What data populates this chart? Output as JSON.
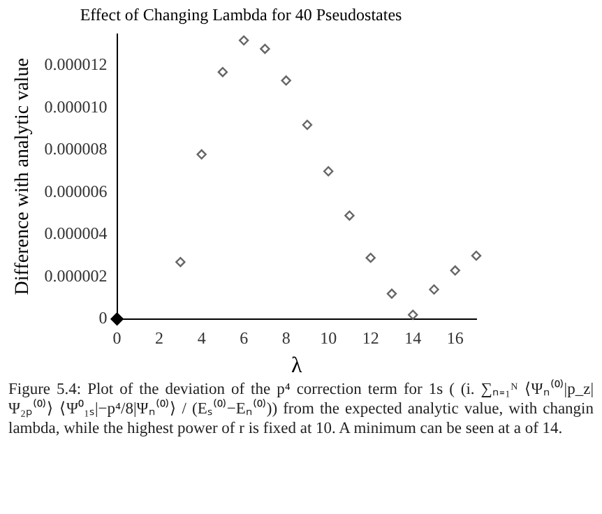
{
  "chart_data": {
    "type": "scatter",
    "title": "Effect of Changing Lambda for 40 Pseudostates",
    "xlabel": "λ",
    "ylabel": "Difference with analytic value",
    "series": [
      {
        "color": "#666666",
        "marker": "diamond",
        "x": [
          3,
          4,
          5,
          6,
          7,
          8,
          9,
          10,
          11,
          12,
          13,
          14,
          15,
          16,
          17
        ],
        "values": [
          2.7e-06,
          7.8e-06,
          1.17e-05,
          1.32e-05,
          1.28e-05,
          1.13e-05,
          9.2e-06,
          7e-06,
          4.9e-06,
          2.9e-06,
          1.2e-06,
          2e-07,
          1.4e-06,
          2.3e-06,
          3e-06
        ]
      },
      {
        "color": "#000000",
        "marker": "diamond",
        "x": [
          0
        ],
        "values": [
          0
        ]
      }
    ],
    "xlim": [
      0,
      17
    ],
    "xticks": [
      0,
      2,
      4,
      6,
      8,
      10,
      12,
      14,
      16
    ],
    "ylim": [
      0,
      1.35e-05
    ],
    "yticks": [
      0,
      {
        "value": 2e-06,
        "label": "0.000002"
      },
      {
        "value": 4e-06,
        "label": "0.000004"
      },
      {
        "value": 6e-06,
        "label": "0.000006"
      },
      {
        "value": 8e-06,
        "label": "0.000008"
      },
      {
        "value": 1e-05,
        "label": "0.000010"
      },
      {
        "value": 1.2e-05,
        "label": "0.000012"
      }
    ],
    "grid": false,
    "legend": false,
    "annotations": [
      "Figure 5.4: Plot of the deviation of the p⁴ correction term for 1s ( (i. ∑ₙ₌₁ᴺ ⟨Ψₙ⁽⁰⁾|p_z|Ψ₂ₚ⁽⁰⁾⟩ ⟨Ψ⁰₁ₛ|−p⁴/8|Ψₙ⁽⁰⁾⟩ / (Eₛ⁽⁰⁾−Eₙ⁽⁰⁾)) from the expected analytic value, with changin lambda, while the highest power of r is fixed at 10. A minimum can be seen at a of 14."
    ]
  }
}
